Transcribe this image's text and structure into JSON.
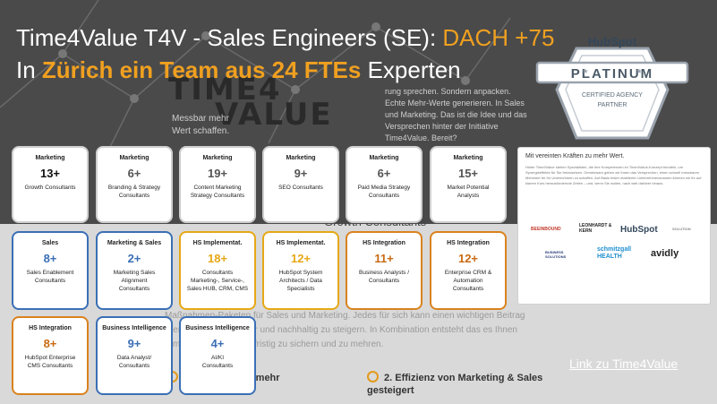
{
  "headline": {
    "line1_prefix": "Time4Value T4V - Sales Engineers (SE): ",
    "line1_accent": "DACH +75",
    "line2_prefix": "In ",
    "line2_accent": "Zürich ein Team aus 24 FTEs",
    "line2_suffix": " Experten"
  },
  "background": {
    "logo_line1": "TIME4",
    "logo_line2": "VALUE",
    "logo_tag1": "Messbar mehr",
    "logo_tag2": "Wert schaffen.",
    "text": "rung sprechen. Sondern anpacken. Echte Mehr-Werte generieren. In Sales und Marketing. Das ist die Idee und das Versprechen hinter der Initiative Time4Value. Bereit?",
    "growth": "Growth Consultants",
    "para": "Maßnahmen-Paketen für Sales und Marketing. Jedes für sich kann einen wichtigen Beitrag Wertschöpfung spürbar und nachhaltig zu steigern. In Kombination entsteht das es Ihnen ermöglicht, Werte langfristig zu sichern und zu mehren.",
    "item1": "gewonnen und mehr",
    "item2": "2. Effizienz von Marketing & Sales gesteigert"
  },
  "badge": {
    "brand": "HubSpot",
    "tier": "PLATINUM",
    "line1": "CERTIFIED AGENCY",
    "line2": "PARTNER"
  },
  "panel": {
    "title": "Mit vereinten Kräften zu mehr Wert.",
    "body": "Hinter Time4Value stehen Spezialisten, die ihre Kompetenzen im Time4Value-Konzept bündeln, um Synergieeffekte für Sie freizusetzen. Gemeinsam geben wir Ihnen das Versprechen, einen schnell messbaren Mehrwert für Ihr Unternehmen zu schaffen. Auf Basis fester etablierter Unternehmensnamen können wir Ihr auf klarem Kurs herausfordernde Zeiten – und, wenn Sie wollen, nach weit darüber hinaus.",
    "partners": [
      "BEEINBOUND",
      "LEONHARDT & KERN",
      "HubSpot",
      "SOLUTION",
      "BUSINESS SOLUTIONS",
      "schmitzgall HEALTH",
      "avidly"
    ]
  },
  "link": "Link zu Time4Value",
  "cards": [
    {
      "cat": "Marketing",
      "num": "13+",
      "desc": [
        "Growth Consultants"
      ]
    },
    {
      "cat": "Marketing",
      "num": "6+",
      "desc": [
        "Branding & Strategy",
        "Consultants"
      ]
    },
    {
      "cat": "Marketing",
      "num": "19+",
      "desc": [
        "Content Marketing",
        "Strategy Consultants"
      ]
    },
    {
      "cat": "Marketing",
      "num": "9+",
      "desc": [
        "SEO Consultants"
      ]
    },
    {
      "cat": "Marketing",
      "num": "6+",
      "desc": [
        "Paid Media Strategy",
        "Consultants"
      ]
    },
    {
      "cat": "Marketing",
      "num": "15+",
      "desc": [
        "Market Potential",
        "Analysts"
      ]
    },
    {
      "cat": "Sales",
      "num": "8+",
      "desc": [
        "Sales Enablement",
        "Consultants"
      ]
    },
    {
      "cat": "Marketing & Sales",
      "num": "2+",
      "desc": [
        "Marketing Sales",
        "Alignment",
        "Consultants"
      ]
    },
    {
      "cat": "HS Implementat.",
      "num": "18+",
      "desc": [
        "Consultants",
        "Marketing-, Service-,",
        "Sales HUB, CRM, CMS"
      ]
    },
    {
      "cat": "HS Implementat.",
      "num": "12+",
      "desc": [
        "HubSpot System",
        "Architects / Data",
        "Specialists"
      ]
    },
    {
      "cat": "HS Integration",
      "num": "11+",
      "desc": [
        "Business Analysts /",
        "Consultants"
      ]
    },
    {
      "cat": "HS Integration",
      "num": "12+",
      "desc": [
        "Enterprise CRM &",
        "Automation",
        "Consultants"
      ]
    },
    {
      "cat": "HS Integration",
      "num": "8+",
      "desc": [
        "HubSpot Enterprise",
        "CMS Consultants"
      ]
    },
    {
      "cat": "Business Intelligence",
      "num": "9+",
      "desc": [
        "Data Analyst/",
        "Consultants"
      ]
    },
    {
      "cat": "Business Intelligence",
      "num": "4+",
      "desc": [
        "AI/KI",
        "Consultants"
      ]
    }
  ],
  "colors": {
    "accent": "#f0a020",
    "blue": "#3b6fb5",
    "gold": "#e6a817",
    "orange": "#d9821e"
  }
}
